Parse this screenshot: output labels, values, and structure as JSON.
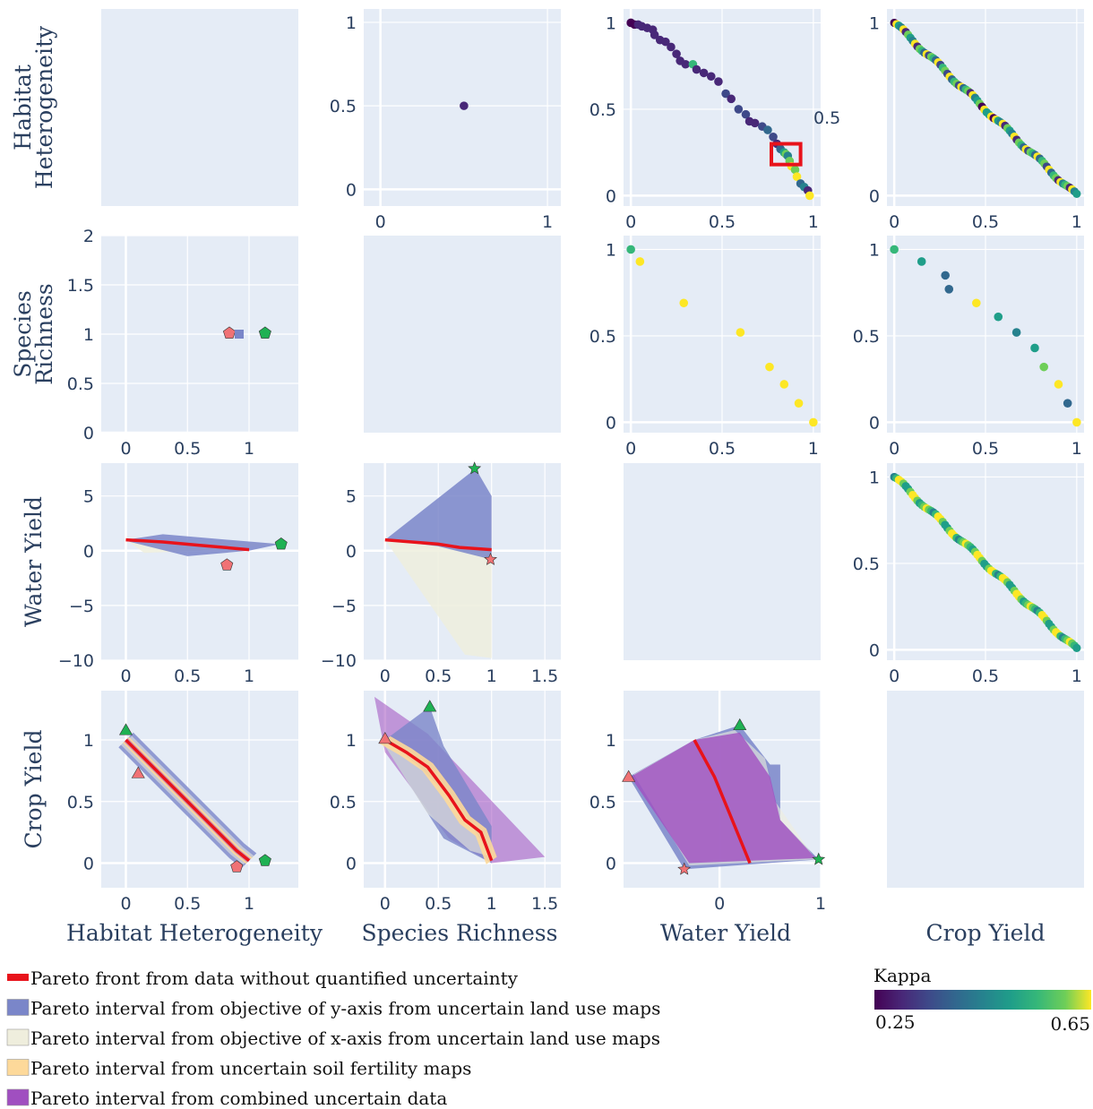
{
  "figure": {
    "dimensions": [
      "Habitat Heterogeneity",
      "Species Richness",
      "Water Yield",
      "Crop Yield"
    ],
    "row_labels": [
      [
        "Habitat",
        "Heterogeneity"
      ],
      [
        "Species",
        "Richness"
      ],
      [
        "Water Yield"
      ],
      [
        "Crop Yield"
      ]
    ],
    "colors": {
      "panel_bg": "#e5ecf6",
      "grid": "#ffffff",
      "pareto_front": "#e8131b",
      "y_uncertain": "#7a86c9",
      "x_uncertain": "#efeedd",
      "soil": "#fdd99a",
      "combined": "#a04fc0",
      "highlight_box": "#e8131b",
      "marker_green": "#1fb153",
      "marker_red": "#f07275"
    }
  },
  "legend": [
    {
      "label": "Pareto front from data without quantified uncertainty",
      "kind": "line",
      "color": "#e8131b"
    },
    {
      "label": "Pareto interval from objective of y-axis from uncertain land use maps",
      "kind": "box",
      "color": "#7a86c9"
    },
    {
      "label": "Pareto interval from objective of x-axis from uncertain land use maps",
      "kind": "box",
      "color": "#efeedd"
    },
    {
      "label": "Pareto interval from uncertain soil fertility maps",
      "kind": "box",
      "color": "#fdd99a"
    },
    {
      "label": "Pareto interval from combined uncertain data",
      "kind": "box",
      "color": "#a04fc0"
    }
  ],
  "colorbar": {
    "title": "Kappa",
    "min_label": "0.25",
    "max_label": "0.65",
    "min": 0.25,
    "max": 0.65
  },
  "stray_label": "0.5",
  "chart_data": [
    {
      "type": "scatter",
      "row": 1,
      "col": 2,
      "xlabel": "",
      "ylabel": "",
      "xticks": [
        "0",
        "1"
      ],
      "yticks": [
        "0",
        "0.5",
        "1"
      ],
      "xlim": [
        -0.1,
        1.08
      ],
      "ylim": [
        -0.1,
        1.08
      ],
      "points": [
        {
          "x": 0.5,
          "y": 0.5,
          "kappa": 0.28
        }
      ]
    },
    {
      "type": "scatter",
      "row": 1,
      "col": 3,
      "xticks": [
        "0",
        "0.5",
        "1"
      ],
      "yticks": [
        "0",
        "0.5",
        "1"
      ],
      "xlim": [
        -0.04,
        1.04
      ],
      "ylim": [
        -0.06,
        1.08
      ],
      "points": [
        {
          "x": 0.0,
          "y": 1.0,
          "kappa": 0.27
        },
        {
          "x": 0.02,
          "y": 0.99,
          "kappa": 0.27
        },
        {
          "x": 0.04,
          "y": 0.99,
          "kappa": 0.28
        },
        {
          "x": 0.06,
          "y": 0.98,
          "kappa": 0.29
        },
        {
          "x": 0.09,
          "y": 0.97,
          "kappa": 0.28
        },
        {
          "x": 0.12,
          "y": 0.96,
          "kappa": 0.3
        },
        {
          "x": 0.13,
          "y": 0.93,
          "kappa": 0.29
        },
        {
          "x": 0.16,
          "y": 0.9,
          "kappa": 0.28
        },
        {
          "x": 0.19,
          "y": 0.89,
          "kappa": 0.3
        },
        {
          "x": 0.22,
          "y": 0.86,
          "kappa": 0.29
        },
        {
          "x": 0.25,
          "y": 0.82,
          "kappa": 0.28
        },
        {
          "x": 0.27,
          "y": 0.78,
          "kappa": 0.31
        },
        {
          "x": 0.3,
          "y": 0.76,
          "kappa": 0.29
        },
        {
          "x": 0.34,
          "y": 0.76,
          "kappa": 0.55
        },
        {
          "x": 0.36,
          "y": 0.73,
          "kappa": 0.3
        },
        {
          "x": 0.4,
          "y": 0.71,
          "kappa": 0.29
        },
        {
          "x": 0.44,
          "y": 0.69,
          "kappa": 0.28
        },
        {
          "x": 0.48,
          "y": 0.66,
          "kappa": 0.3
        },
        {
          "x": 0.52,
          "y": 0.59,
          "kappa": 0.33
        },
        {
          "x": 0.55,
          "y": 0.56,
          "kappa": 0.3
        },
        {
          "x": 0.59,
          "y": 0.5,
          "kappa": 0.34
        },
        {
          "x": 0.63,
          "y": 0.47,
          "kappa": 0.36
        },
        {
          "x": 0.65,
          "y": 0.43,
          "kappa": 0.31
        },
        {
          "x": 0.68,
          "y": 0.42,
          "kappa": 0.29
        },
        {
          "x": 0.72,
          "y": 0.4,
          "kappa": 0.33
        },
        {
          "x": 0.75,
          "y": 0.38,
          "kappa": 0.38
        },
        {
          "x": 0.78,
          "y": 0.34,
          "kappa": 0.35
        },
        {
          "x": 0.8,
          "y": 0.3,
          "kappa": 0.31
        },
        {
          "x": 0.82,
          "y": 0.27,
          "kappa": 0.4
        },
        {
          "x": 0.84,
          "y": 0.25,
          "kappa": 0.5
        },
        {
          "x": 0.85,
          "y": 0.24,
          "kappa": 0.62
        },
        {
          "x": 0.86,
          "y": 0.23,
          "kappa": 0.45
        },
        {
          "x": 0.87,
          "y": 0.2,
          "kappa": 0.6
        },
        {
          "x": 0.88,
          "y": 0.17,
          "kappa": 0.64
        },
        {
          "x": 0.9,
          "y": 0.15,
          "kappa": 0.58
        },
        {
          "x": 0.91,
          "y": 0.11,
          "kappa": 0.65
        },
        {
          "x": 0.93,
          "y": 0.07,
          "kappa": 0.42
        },
        {
          "x": 0.95,
          "y": 0.05,
          "kappa": 0.47
        },
        {
          "x": 0.97,
          "y": 0.03,
          "kappa": 0.32
        },
        {
          "x": 0.98,
          "y": 0.0,
          "kappa": 0.65
        }
      ],
      "highlight_box": {
        "x0": 0.77,
        "x1": 0.93,
        "y0": 0.18,
        "y1": 0.3
      }
    },
    {
      "type": "scatter",
      "row": 1,
      "col": 4,
      "xticks": [
        "0",
        "0.5",
        "1"
      ],
      "yticks": [
        "0",
        "1"
      ],
      "xlim": [
        -0.04,
        1.04
      ],
      "ylim": [
        -0.06,
        1.08
      ],
      "trend": "diagonal from (0,1) to (1,0), dense points",
      "n_points": 80
    },
    {
      "type": "scatter",
      "row": 2,
      "col": 1,
      "xticks": [
        "0",
        "0.5",
        "1"
      ],
      "yticks": [
        "0",
        "0.5",
        "1",
        "1.5",
        "2"
      ],
      "xlim": [
        -0.2,
        1.4
      ],
      "ylim": [
        0,
        2
      ],
      "markers": [
        {
          "x": 0.84,
          "y": 1.01,
          "shape": "pentagon",
          "color": "#f07275"
        },
        {
          "x": 0.92,
          "y": 1.0,
          "shape": "bar",
          "color": "#7a86c9"
        },
        {
          "x": 1.13,
          "y": 1.01,
          "shape": "pentagon",
          "color": "#1fb153"
        }
      ]
    },
    {
      "type": "scatter",
      "row": 2,
      "col": 3,
      "xticks": [
        "0",
        "0.5",
        "1"
      ],
      "yticks": [
        "0",
        "0.5",
        "1"
      ],
      "xlim": [
        -0.04,
        1.04
      ],
      "ylim": [
        -0.06,
        1.08
      ],
      "points": [
        {
          "x": 0.0,
          "y": 1.0,
          "kappa": 0.57
        },
        {
          "x": 0.05,
          "y": 0.93,
          "kappa": 0.65
        },
        {
          "x": 0.29,
          "y": 0.69,
          "kappa": 0.65
        },
        {
          "x": 0.6,
          "y": 0.52,
          "kappa": 0.65
        },
        {
          "x": 0.76,
          "y": 0.32,
          "kappa": 0.65
        },
        {
          "x": 0.84,
          "y": 0.22,
          "kappa": 0.65
        },
        {
          "x": 0.92,
          "y": 0.11,
          "kappa": 0.65
        },
        {
          "x": 1.0,
          "y": 0.0,
          "kappa": 0.65
        }
      ]
    },
    {
      "type": "scatter",
      "row": 2,
      "col": 4,
      "xticks": [
        "0",
        "0.5",
        "1"
      ],
      "yticks": [
        "0",
        "0.5",
        "1"
      ],
      "xlim": [
        -0.04,
        1.04
      ],
      "ylim": [
        -0.06,
        1.08
      ],
      "points": [
        {
          "x": 0.0,
          "y": 1.0,
          "kappa": 0.55
        },
        {
          "x": 0.15,
          "y": 0.93,
          "kappa": 0.48
        },
        {
          "x": 0.28,
          "y": 0.85,
          "kappa": 0.4
        },
        {
          "x": 0.3,
          "y": 0.77,
          "kappa": 0.42
        },
        {
          "x": 0.45,
          "y": 0.69,
          "kappa": 0.65
        },
        {
          "x": 0.57,
          "y": 0.61,
          "kappa": 0.5
        },
        {
          "x": 0.67,
          "y": 0.52,
          "kappa": 0.47
        },
        {
          "x": 0.77,
          "y": 0.43,
          "kappa": 0.5
        },
        {
          "x": 0.82,
          "y": 0.32,
          "kappa": 0.6
        },
        {
          "x": 0.9,
          "y": 0.22,
          "kappa": 0.63
        },
        {
          "x": 0.95,
          "y": 0.11,
          "kappa": 0.4
        },
        {
          "x": 1.0,
          "y": 0.0,
          "kappa": 0.65
        }
      ]
    },
    {
      "type": "area",
      "row": 3,
      "col": 1,
      "xticks": [
        "0",
        "0.5",
        "1"
      ],
      "yticks": [
        "−10",
        "−5",
        "0",
        "5"
      ],
      "xlim": [
        -0.2,
        1.4
      ],
      "ylim": [
        -10,
        8
      ],
      "front": [
        [
          0,
          1.0
        ],
        [
          0.3,
          0.8
        ],
        [
          0.6,
          0.5
        ],
        [
          1.0,
          0.1
        ]
      ],
      "y_uncertain_polygon": [
        [
          0,
          1.0
        ],
        [
          0.3,
          1.5
        ],
        [
          1.25,
          0.6
        ],
        [
          1.0,
          0.0
        ],
        [
          0.5,
          -0.5
        ],
        [
          0,
          0.9
        ]
      ],
      "x_uncertain_polygon": [
        [
          0,
          1.0
        ],
        [
          0.15,
          -0.2
        ],
        [
          0.6,
          0.0
        ],
        [
          1.25,
          0.6
        ],
        [
          0.5,
          0.9
        ]
      ],
      "markers": [
        {
          "x": 1.26,
          "y": 0.6,
          "shape": "pentagon",
          "color": "#1fb153"
        },
        {
          "x": 0.82,
          "y": -1.3,
          "shape": "pentagon",
          "color": "#f07275"
        }
      ]
    },
    {
      "type": "area",
      "row": 3,
      "col": 2,
      "xticks": [
        "0",
        "0.5",
        "1",
        "1.5"
      ],
      "yticks": [
        "−10",
        "−5",
        "0",
        "5"
      ],
      "xlim": [
        -0.2,
        1.65
      ],
      "ylim": [
        -10,
        8
      ],
      "front": [
        [
          0,
          1.0
        ],
        [
          0.5,
          0.6
        ],
        [
          0.7,
          0.3
        ],
        [
          1.0,
          0.1
        ]
      ],
      "y_uncertain_polygon": [
        [
          0,
          1.0
        ],
        [
          0.85,
          7.5
        ],
        [
          1.0,
          5.0
        ],
        [
          1.0,
          -0.8
        ],
        [
          0.5,
          0.4
        ]
      ],
      "x_uncertain_polygon": [
        [
          0,
          1.0
        ],
        [
          0.75,
          -9.5
        ],
        [
          1.0,
          -9.8
        ],
        [
          1.0,
          0.0
        ],
        [
          0.5,
          0.5
        ]
      ],
      "markers": [
        {
          "x": 0.84,
          "y": 7.5,
          "shape": "star",
          "color": "#1fb153"
        },
        {
          "x": 0.99,
          "y": -0.8,
          "shape": "star",
          "color": "#f07275"
        }
      ]
    },
    {
      "type": "scatter",
      "row": 3,
      "col": 4,
      "xticks": [
        "0",
        "0.5",
        "1"
      ],
      "yticks": [
        "0",
        "0.5",
        "1"
      ],
      "xlim": [
        -0.04,
        1.04
      ],
      "ylim": [
        -0.06,
        1.08
      ],
      "trend": "diagonal from (0,1) to (1,0), dense points",
      "n_points": 80
    },
    {
      "type": "area",
      "row": 4,
      "col": 1,
      "xticks": [
        "0",
        "0.5",
        "1"
      ],
      "yticks": [
        "0",
        "0.5",
        "1"
      ],
      "xlim": [
        -0.2,
        1.4
      ],
      "ylim": [
        -0.2,
        1.4
      ],
      "front": [
        [
          0,
          1.0
        ],
        [
          0.1,
          0.9
        ],
        [
          0.3,
          0.7
        ],
        [
          0.5,
          0.5
        ],
        [
          0.7,
          0.3
        ],
        [
          0.9,
          0.1
        ],
        [
          1.0,
          0.02
        ]
      ],
      "markers": [
        {
          "x": 0.0,
          "y": 1.08,
          "shape": "triangle",
          "color": "#1fb153"
        },
        {
          "x": 0.1,
          "y": 0.73,
          "shape": "triangle",
          "color": "#f07275"
        },
        {
          "x": 1.13,
          "y": 0.02,
          "shape": "pentagon",
          "color": "#1fb153"
        },
        {
          "x": 0.9,
          "y": -0.03,
          "shape": "pentagon",
          "color": "#f07275"
        }
      ]
    },
    {
      "type": "area",
      "row": 4,
      "col": 2,
      "xticks": [
        "0",
        "0.5",
        "1",
        "1.5"
      ],
      "yticks": [
        "0",
        "0.5",
        "1"
      ],
      "xlim": [
        -0.2,
        1.65
      ],
      "ylim": [
        -0.2,
        1.4
      ],
      "front": [
        [
          0,
          1.0
        ],
        [
          0.2,
          0.9
        ],
        [
          0.4,
          0.78
        ],
        [
          0.6,
          0.55
        ],
        [
          0.75,
          0.35
        ],
        [
          0.9,
          0.25
        ],
        [
          1.0,
          0.02
        ]
      ],
      "markers": [
        {
          "x": 0.42,
          "y": 1.27,
          "shape": "triangle",
          "color": "#1fb153"
        },
        {
          "x": 0.0,
          "y": 1.01,
          "shape": "triangle",
          "color": "#f07275"
        }
      ]
    },
    {
      "type": "area",
      "row": 4,
      "col": 3,
      "xticks": [
        "0",
        "1"
      ],
      "yticks": [
        "0",
        "0.5",
        "1"
      ],
      "xlim": [
        -0.95,
        1.0
      ],
      "ylim": [
        -0.2,
        1.4
      ],
      "front": [
        [
          -0.25,
          1.0
        ],
        [
          -0.05,
          0.7
        ],
        [
          0.1,
          0.4
        ],
        [
          0.3,
          0.0
        ]
      ],
      "markers": [
        {
          "x": 0.2,
          "y": 1.12,
          "shape": "triangle",
          "color": "#1fb153"
        },
        {
          "x": -0.9,
          "y": 0.7,
          "shape": "triangle",
          "color": "#f07275"
        },
        {
          "x": 0.98,
          "y": 0.03,
          "shape": "star",
          "color": "#1fb153"
        },
        {
          "x": -0.35,
          "y": -0.05,
          "shape": "star",
          "color": "#f07275"
        }
      ]
    }
  ]
}
